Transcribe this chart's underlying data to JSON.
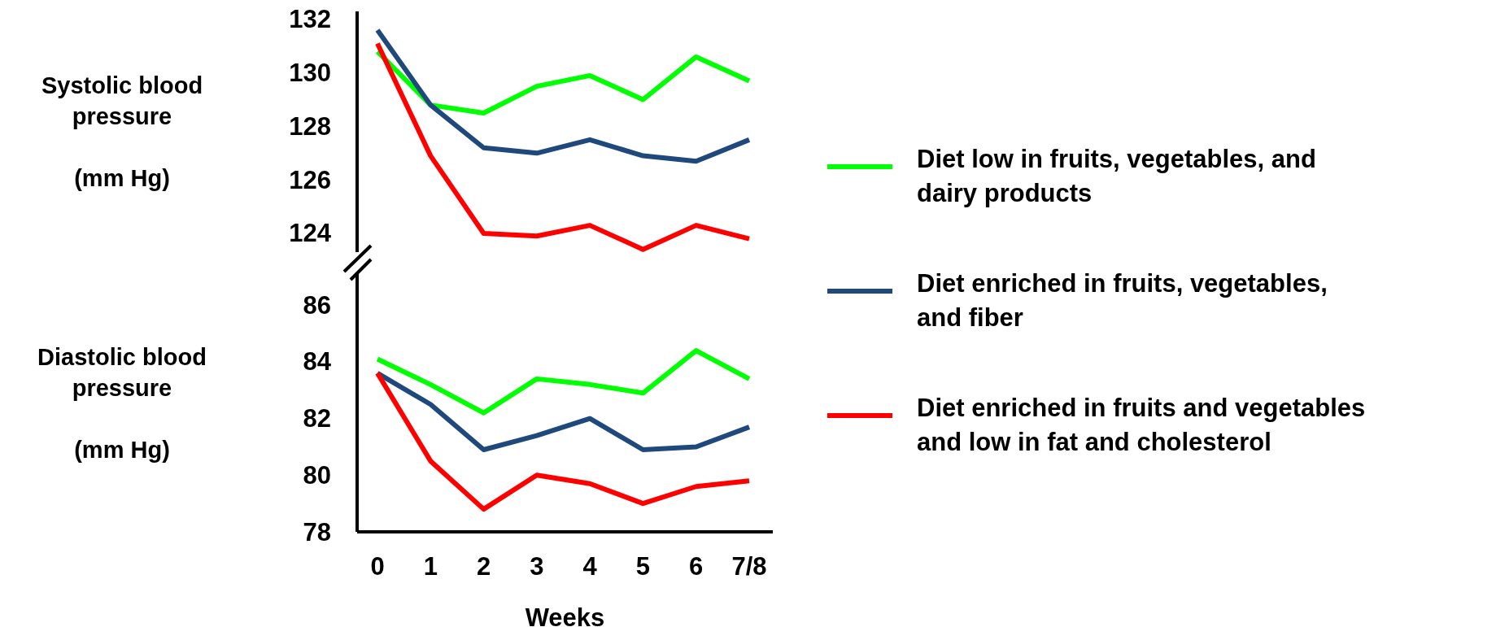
{
  "chart_data": [
    {
      "type": "line",
      "ylabel": "Systolic blood\npressure\n\n(mm Hg)",
      "categories": [
        null,
        null,
        null,
        null,
        null,
        null,
        null,
        null
      ],
      "ylim": [
        123.3,
        132.3
      ],
      "yticks": [
        124,
        126,
        128,
        130,
        132
      ],
      "tick_labels": "y",
      "legend": "right",
      "grid": false,
      "marker": "none",
      "line_style": "solid",
      "series": [
        {
          "name": "Diet low in fruits, vegetables, and dairy products",
          "color": "#00ff00",
          "values": [
            130.8,
            128.8,
            128.5,
            129.5,
            129.9,
            129.0,
            130.6,
            129.7
          ]
        },
        {
          "name": "Diet enriched in fruits, vegetables, and fiber",
          "color": "#1f497d",
          "values": [
            131.6,
            128.8,
            127.2,
            127.0,
            127.5,
            126.9,
            126.7,
            127.5
          ]
        },
        {
          "name": "Diet enriched in fruits and vegetables and low in fat and cholesterol",
          "color": "#ff0000",
          "values": [
            131.1,
            126.9,
            124.0,
            123.9,
            124.3,
            123.4,
            124.3,
            123.8
          ]
        }
      ]
    },
    {
      "type": "line",
      "ylabel": "Diastolic blood\npressure\n\n(mm Hg)",
      "xlabel": "Weeks",
      "categories": [
        "0",
        "1",
        "2",
        "3",
        "4",
        "5",
        "6",
        "7/8"
      ],
      "ylim": [
        78,
        87.1
      ],
      "yticks": [
        78,
        80,
        82,
        84,
        86
      ],
      "grid": false,
      "marker": "none",
      "line_style": "solid",
      "series": [
        {
          "color": "#00ff00",
          "values": [
            84.1,
            83.2,
            82.2,
            83.4,
            83.2,
            82.9,
            84.4,
            83.4
          ]
        },
        {
          "color": "#1f497d",
          "values": [
            83.6,
            82.5,
            80.9,
            81.4,
            82.0,
            80.9,
            81.0,
            81.7
          ]
        },
        {
          "color": "#ff0000",
          "values": [
            83.6,
            80.5,
            78.8,
            80.0,
            79.7,
            79.0,
            79.6,
            79.8
          ]
        }
      ]
    }
  ]
}
